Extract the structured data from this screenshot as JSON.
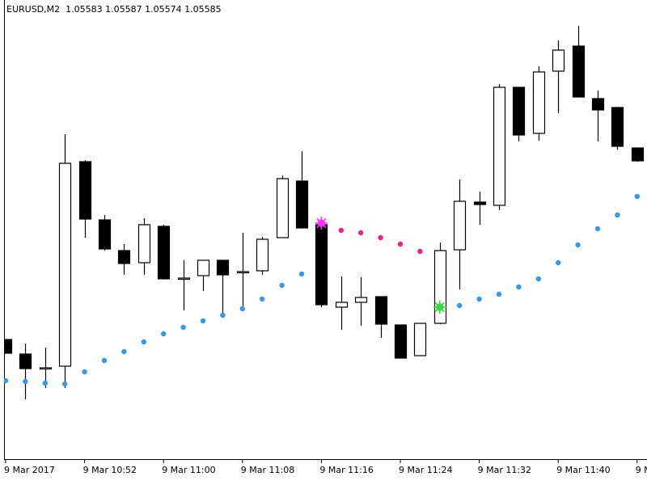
{
  "chart_data": {
    "type": "candlestick",
    "title": "EURUSD,M2  1.05583 1.05587 1.05574 1.05585",
    "categories": [
      "9 Mar 2017",
      null,
      null,
      null,
      "9 Mar 10:52",
      null,
      null,
      null,
      "9 Mar 11:00",
      null,
      null,
      null,
      "9 Mar 11:08",
      null,
      null,
      null,
      "9 Mar 11:16",
      null,
      null,
      null,
      "9 Mar 11:24",
      null,
      null,
      null,
      "9 Mar 11:32",
      null,
      null,
      null,
      "9 Mar 11:40",
      null,
      null,
      null,
      "9 Mar 11:48"
    ],
    "open": [
      1.0536,
      1.05342,
      1.05325,
      1.05327,
      1.0558,
      1.05508,
      1.0547,
      1.05455,
      1.055,
      1.05436,
      1.05439,
      1.05458,
      1.05444,
      1.05445,
      1.05486,
      1.05556,
      1.05502,
      1.054,
      1.05406,
      1.05413,
      1.05378,
      1.0534,
      1.0538,
      1.05471,
      1.0553,
      1.05526,
      1.05672,
      1.05615,
      1.05692,
      1.05723,
      1.05658,
      1.05647,
      1.05597
    ],
    "high": [
      1.0536,
      1.05355,
      1.0535,
      1.05614,
      1.05582,
      1.05514,
      1.05478,
      1.0551,
      1.05502,
      1.05458,
      1.05458,
      1.05458,
      1.05492,
      1.05487,
      1.05563,
      1.05593,
      1.05502,
      1.05438,
      1.05437,
      1.05413,
      1.05378,
      1.0538,
      1.0548,
      1.05558,
      1.05543,
      1.05676,
      1.05672,
      1.05698,
      1.0573,
      1.05748,
      1.05668,
      1.05647,
      1.05597
    ],
    "low": [
      1.05343,
      1.05286,
      1.053,
      1.053,
      1.05486,
      1.0547,
      1.0544,
      1.0544,
      1.05435,
      1.05396,
      1.0542,
      1.0539,
      1.054,
      1.0544,
      1.05486,
      1.05498,
      1.054,
      1.05372,
      1.05377,
      1.05362,
      1.05337,
      1.0534,
      1.05379,
      1.05422,
      1.05502,
      1.0552,
      1.05605,
      1.05606,
      1.0564,
      1.0566,
      1.05605,
      1.05595,
      1.0558
    ],
    "close": [
      1.05343,
      1.05324,
      1.05325,
      1.05578,
      1.05509,
      1.05472,
      1.05454,
      1.05502,
      1.05435,
      1.05436,
      1.05458,
      1.0544,
      1.05444,
      1.05484,
      1.05559,
      1.05498,
      1.05403,
      1.05406,
      1.05412,
      1.05379,
      1.05337,
      1.0538,
      1.0547,
      1.05531,
      1.05527,
      1.05672,
      1.05613,
      1.05691,
      1.05718,
      1.0566,
      1.05644,
      1.05599,
      1.05581
    ],
    "series": [
      {
        "color": "#3399ee",
        "values": [
          1.05309,
          1.05308,
          1.05306,
          1.05305,
          1.0532,
          1.05334,
          1.05345,
          1.05357,
          1.05367,
          1.05375,
          1.05383,
          1.0539,
          1.05398,
          1.0541,
          1.05427,
          1.05441,
          null,
          null,
          null,
          null,
          null,
          null,
          1.054,
          1.05402,
          1.0541,
          1.05416,
          1.05425,
          1.05435,
          1.05455,
          1.05477,
          1.05497,
          1.05514,
          1.05537
        ]
      },
      {
        "color": "#ee2288",
        "values": [
          null,
          null,
          null,
          null,
          null,
          null,
          null,
          null,
          null,
          null,
          null,
          null,
          null,
          null,
          null,
          null,
          1.05504,
          1.05495,
          1.05492,
          1.05486,
          1.05478,
          1.05469,
          null,
          null,
          null,
          null,
          null,
          null,
          null,
          null,
          null,
          null,
          null
        ]
      }
    ],
    "signals": [
      {
        "color": "#ff33ff",
        "values": [
          null,
          null,
          null,
          null,
          null,
          null,
          null,
          null,
          null,
          null,
          null,
          null,
          null,
          null,
          null,
          null,
          1.05504,
          null,
          null,
          null,
          null,
          null,
          null,
          null,
          null,
          null,
          null,
          null,
          null,
          null,
          null,
          null,
          null
        ]
      },
      {
        "color": "#33dd33",
        "values": [
          null,
          null,
          null,
          null,
          null,
          null,
          null,
          null,
          null,
          null,
          null,
          null,
          null,
          null,
          null,
          null,
          null,
          null,
          null,
          null,
          null,
          null,
          1.054,
          null,
          null,
          null,
          null,
          null,
          null,
          null,
          null,
          null,
          null
        ]
      }
    ],
    "ylim": [
      1.05212,
      1.0578
    ],
    "up_color": "#ffffff",
    "down_color": "#000000"
  }
}
